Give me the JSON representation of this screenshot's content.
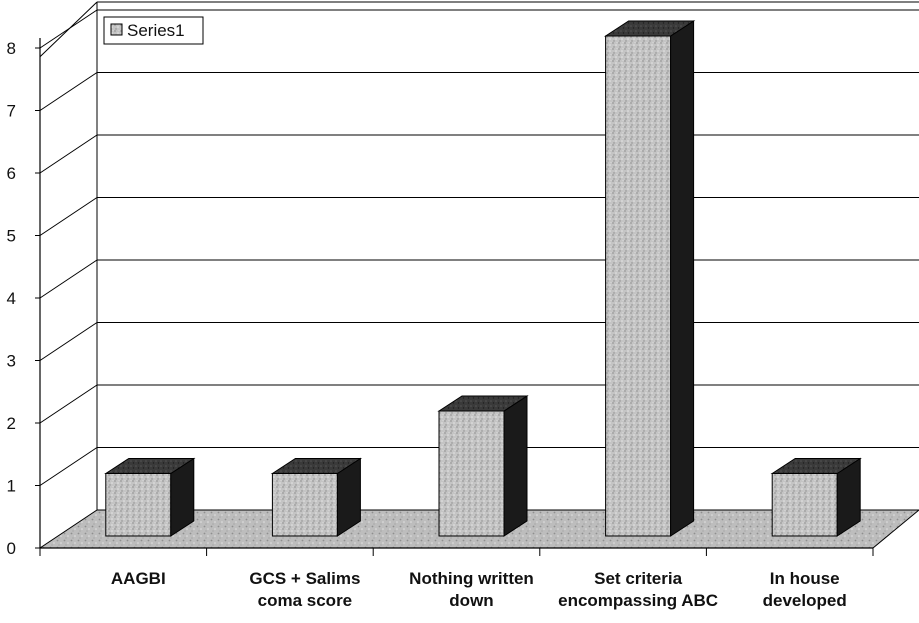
{
  "chart_data": {
    "type": "bar",
    "three_d": true,
    "categories": [
      [
        "AAGBI"
      ],
      [
        "GCS + Salims",
        "coma score"
      ],
      [
        "Nothing written",
        "down"
      ],
      [
        "Set criteria",
        "encompassing ABC"
      ],
      [
        "In house",
        "developed"
      ]
    ],
    "series": [
      {
        "name": "Series1",
        "values": [
          1,
          1,
          2,
          8,
          1
        ]
      }
    ],
    "y_ticks": [
      "0",
      "1",
      "2",
      "3",
      "4",
      "5",
      "6",
      "7",
      "8"
    ],
    "ylim": [
      0,
      8
    ],
    "grid": true,
    "legend": {
      "position": "top-left",
      "label": "Series1"
    },
    "colors": {
      "bar_front": "#c2c2c2",
      "bar_side": "#1a1a1a",
      "bar_top": "#3a3a3a",
      "floor": "#bdbdbd",
      "gridline": "#000000"
    }
  }
}
